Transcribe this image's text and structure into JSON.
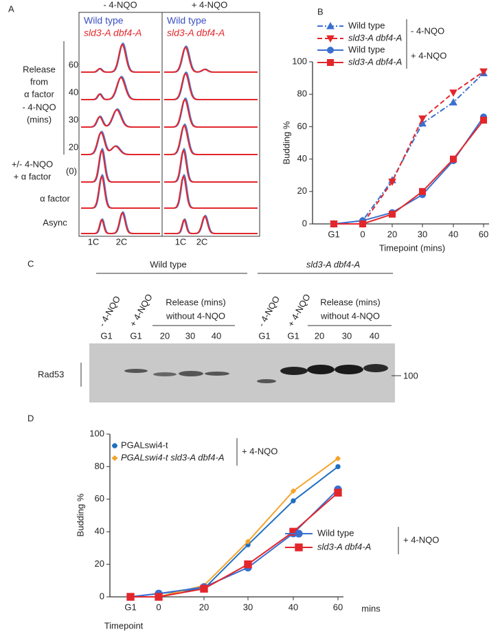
{
  "panel_a": {
    "label": "A",
    "headers": [
      "- 4-NQO",
      "+ 4-NQO"
    ],
    "legend": [
      "Wild type",
      "sld3-A dbf4-A"
    ],
    "row_title": [
      "Release",
      "from",
      "α factor",
      "- 4-NQO",
      "(mins)"
    ],
    "timepoints": [
      "60",
      "40",
      "30",
      "20"
    ],
    "row_labels": [
      "+/- 4-NQO",
      "+ α factor"
    ],
    "zero": "(0)",
    "alpha": "α factor",
    "async": "Async",
    "peaks": [
      "1C",
      "2C"
    ]
  },
  "panel_c": {
    "label": "C",
    "groups": [
      "Wild type",
      "sld3-A dbf4-A"
    ],
    "conditions": [
      "- 4-NQO",
      "+ 4-NQO"
    ],
    "release": [
      "Release (mins)",
      "without 4-NQO"
    ],
    "lanes": [
      "G1",
      "G1",
      "20",
      "30",
      "40"
    ],
    "protein": "Rad53",
    "marker": "100"
  },
  "chart_data": [
    {
      "type": "line",
      "label": "B",
      "ylabel": "Budding %",
      "xlabel": "Timepoint (mins)",
      "categories": [
        "G1",
        "0",
        "20",
        "30",
        "40",
        "60"
      ],
      "ylim": [
        0,
        100
      ],
      "yticks": [
        0,
        20,
        40,
        60,
        80,
        100
      ],
      "legend_notes": [
        "- 4-NQO",
        "+ 4-NQO"
      ],
      "series": [
        {
          "name": "Wild type",
          "color": "#3a6fd0",
          "line_style": "dashdot",
          "marker": "triangle",
          "values": [
            0,
            2,
            27,
            62,
            75,
            93
          ]
        },
        {
          "name": "sld3-A dbf4-A",
          "color": "#e3262b",
          "line_style": "dashed",
          "marker": "triangle-down",
          "values": [
            0,
            0,
            26,
            65,
            81,
            94
          ]
        },
        {
          "name": "Wild type",
          "color": "#3a6fd0",
          "line_style": "solid",
          "marker": "circle",
          "values": [
            0,
            2,
            7,
            18,
            39,
            66
          ]
        },
        {
          "name": "sld3-A dbf4-A",
          "color": "#e3262b",
          "line_style": "solid",
          "marker": "square",
          "values": [
            0,
            0,
            6,
            20,
            40,
            64
          ]
        }
      ]
    },
    {
      "type": "line",
      "label": "D",
      "ylabel": "Budding %",
      "xlabel": "Timepoint",
      "x_unit": "mins",
      "categories": [
        "G1",
        "0",
        "20",
        "30",
        "40",
        "60"
      ],
      "ylim": [
        0,
        100
      ],
      "yticks": [
        0,
        20,
        40,
        60,
        80,
        100
      ],
      "legend_notes": [
        "+ 4-NQO",
        "+ 4-NQO"
      ],
      "series": [
        {
          "name": "PGALswi4-t",
          "color": "#1f6fc0",
          "line_style": "solid",
          "marker": "small-circle",
          "values": [
            0,
            2,
            5,
            32,
            59,
            80
          ]
        },
        {
          "name": "PGALswi4-t sld3-A dbf4-A",
          "color": "#f5a329",
          "line_style": "solid",
          "marker": "diamond",
          "values": [
            0,
            0,
            7,
            34,
            65,
            85
          ]
        },
        {
          "name": "Wild type",
          "color": "#3a6fd0",
          "line_style": "solid",
          "marker": "circle",
          "values": [
            0,
            2,
            6,
            18,
            39,
            66
          ]
        },
        {
          "name": "sld3-A dbf4-A",
          "color": "#e3262b",
          "line_style": "solid",
          "marker": "square",
          "values": [
            0,
            0,
            5,
            20,
            40,
            64
          ]
        }
      ]
    }
  ]
}
